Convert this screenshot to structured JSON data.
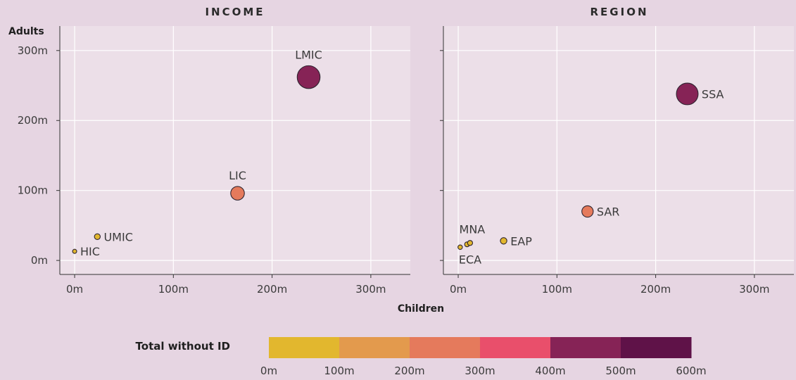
{
  "colors": {
    "background": "#e6d5e2",
    "panel": "#ecdfe8",
    "grid": "#ffffff",
    "axis": "#333333",
    "scale": [
      "#e2b72e",
      "#e39a4d",
      "#e57a5c",
      "#e94f6b",
      "#862356",
      "#5f1248"
    ]
  },
  "chart_data": [
    {
      "type": "scatter",
      "title": "INCOME",
      "ylabel": "Adults",
      "xlim": [
        -15,
        340
      ],
      "ylim": [
        -20,
        335
      ],
      "x_ticks": [
        "0m",
        "100m",
        "200m",
        "300m"
      ],
      "y_ticks": [
        "0m",
        "100m",
        "200m",
        "300m"
      ],
      "points": [
        {
          "label": "HIC",
          "x": 0,
          "y": 13,
          "total": 13
        },
        {
          "label": "UMIC",
          "x": 23,
          "y": 34,
          "total": 57
        },
        {
          "label": "LIC",
          "x": 165,
          "y": 96,
          "total": 261
        },
        {
          "label": "LMIC",
          "x": 237,
          "y": 262,
          "total": 499
        }
      ]
    },
    {
      "type": "scatter",
      "title": "REGION",
      "xlim": [
        -15,
        340
      ],
      "ylim": [
        -20,
        335
      ],
      "x_ticks": [
        "0m",
        "100m",
        "200m",
        "300m"
      ],
      "points": [
        {
          "label": "ECA",
          "x": 2,
          "y": 19,
          "total": 21
        },
        {
          "label": "",
          "x": 9,
          "y": 23,
          "total": 32
        },
        {
          "label": "MNA",
          "x": 12,
          "y": 25,
          "total": 37
        },
        {
          "label": "EAP",
          "x": 46,
          "y": 28,
          "total": 74
        },
        {
          "label": "SAR",
          "x": 131,
          "y": 70,
          "total": 201
        },
        {
          "label": "SSA",
          "x": 232,
          "y": 238,
          "total": 470
        }
      ]
    }
  ],
  "shared": {
    "xlabel": "Children"
  },
  "legend": {
    "title": "Total without ID",
    "ticks": [
      "0m",
      "100m",
      "200m",
      "300m",
      "400m",
      "500m",
      "600m"
    ],
    "min": 0,
    "max": 600
  }
}
